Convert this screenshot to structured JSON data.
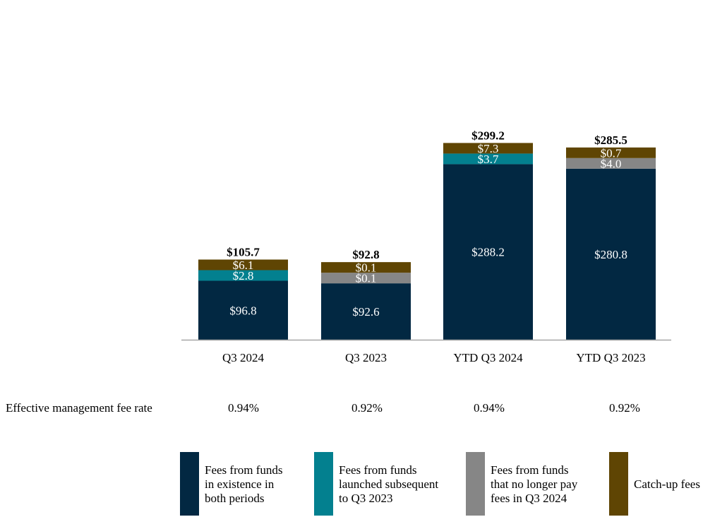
{
  "chart_data": {
    "type": "bar",
    "stacked": true,
    "title": "",
    "xlabel": "",
    "ylabel": "",
    "ylim": [
      0,
      320
    ],
    "grid": false,
    "legend_position": "bottom",
    "categories": [
      "Q3 2024",
      "Q3 2023",
      "YTD Q3 2024",
      "YTD Q3 2023"
    ],
    "totals": [
      105.7,
      92.8,
      299.2,
      285.5
    ],
    "total_labels": [
      "$105.7",
      "$92.8",
      "$299.2",
      "$285.5"
    ],
    "series": [
      {
        "name": "Fees from funds in existence in both periods",
        "color": "#022842",
        "values": [
          96.8,
          92.6,
          288.2,
          280.8
        ],
        "labels": [
          "$96.8",
          "$92.6",
          "$288.2",
          "$280.8"
        ]
      },
      {
        "name": "Fees from funds launched subsequent to Q3 2023",
        "color": "#03808f",
        "values": [
          2.8,
          0,
          3.7,
          0
        ],
        "labels": [
          "$2.8",
          "",
          "$3.7",
          ""
        ]
      },
      {
        "name": "Fees from funds that no longer pay fees in Q3 2024",
        "color": "#868686",
        "values": [
          0,
          0.1,
          0,
          4.0
        ],
        "labels": [
          "",
          "$0.1",
          "",
          "$4.0"
        ]
      },
      {
        "name": "Catch-up fees",
        "color": "#5f4503",
        "values": [
          6.1,
          0.1,
          7.3,
          0.7
        ],
        "labels": [
          "$6.1",
          "$0.1",
          "$7.3",
          "$0.7"
        ]
      }
    ]
  },
  "fee_rate": {
    "label": "Effective management fee rate",
    "values": [
      "0.94%",
      "0.92%",
      "0.94%",
      "0.92%"
    ]
  },
  "legend": [
    {
      "lines": [
        "Fees from funds",
        "in existence in",
        "both periods"
      ],
      "color": "#022842"
    },
    {
      "lines": [
        "Fees from funds",
        "launched subsequent",
        "to Q3 2023"
      ],
      "color": "#03808f"
    },
    {
      "lines": [
        "Fees from funds",
        "that no longer pay",
        "fees in Q3 2024"
      ],
      "color": "#868686"
    },
    {
      "lines": [
        "Catch-up fees"
      ],
      "color": "#5f4503"
    }
  ]
}
